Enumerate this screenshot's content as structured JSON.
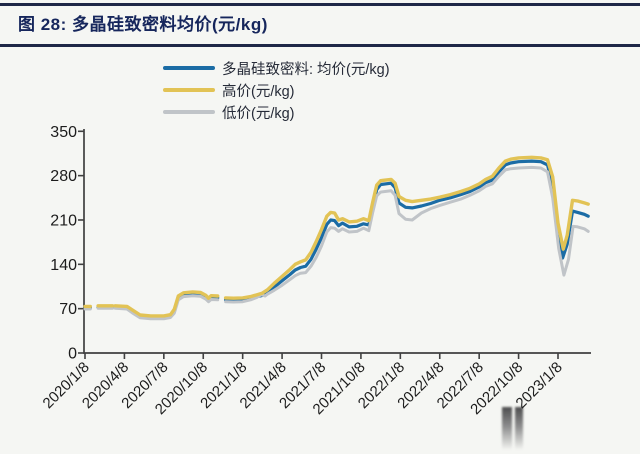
{
  "title": "图 28: 多晶硅致密料均价(元/kg)",
  "colors": {
    "accent_navy": "#16265c",
    "axis": "#404040",
    "tick_text": "#1c1c1c"
  },
  "chart_data": {
    "type": "line",
    "title": "图 28: 多晶硅致密料均价(元/kg)",
    "xlabel": "",
    "ylabel": "",
    "x_unit": "date (半月度), t = months since 2020/1/8",
    "grid": false,
    "legend_position": "top-center",
    "ylim": [
      0,
      350
    ],
    "yticks": [
      0,
      70,
      140,
      210,
      280,
      350
    ],
    "x_tick_months": [
      0,
      3,
      6,
      9,
      12,
      15,
      18,
      21,
      24,
      27,
      30,
      33,
      36
    ],
    "x_tick_labels": [
      "2020/1/8",
      "2020/4/8",
      "2020/7/8",
      "2020/10/8",
      "2021/1/8",
      "2021/4/8",
      "2021/7/8",
      "2021/10/8",
      "2022/1/8",
      "2022/4/8",
      "2022/7/8",
      "2022/10/8",
      "2023/1/8"
    ],
    "xlim_months": [
      0,
      38.6
    ],
    "series": [
      {
        "name": "多晶硅致密料: 均价(元/kg)",
        "key": "avg",
        "color": "#1b6ca5",
        "width": 3.2,
        "segments": [
          [
            [
              0,
              71.5
            ],
            [
              0.4,
              71.5
            ]
          ],
          [
            [
              1.0,
              72.5
            ],
            [
              2.1,
              72.5
            ]
          ],
          [
            [
              2.3,
              72.5
            ],
            [
              3.2,
              71.5
            ],
            [
              3.6,
              66
            ],
            [
              4.2,
              58
            ],
            [
              5.0,
              56.5
            ],
            [
              6.0,
              56.5
            ],
            [
              6.5,
              58.5
            ],
            [
              6.8,
              66
            ],
            [
              7.1,
              87
            ],
            [
              7.5,
              92
            ],
            [
              8.2,
              93.5
            ],
            [
              8.8,
              92.5
            ],
            [
              9.2,
              88
            ],
            [
              9.4,
              83.5
            ],
            [
              9.6,
              87.5
            ],
            [
              10.1,
              87
            ]
          ],
          [
            [
              10.7,
              84
            ],
            [
              11.3,
              83.5
            ],
            [
              12.0,
              84
            ],
            [
              12.6,
              86
            ],
            [
              13.1,
              89
            ],
            [
              13.5,
              91
            ],
            [
              13.9,
              96
            ],
            [
              14.4,
              104
            ],
            [
              15.0,
              114
            ],
            [
              15.6,
              124
            ],
            [
              16.0,
              131
            ],
            [
              16.4,
              135
            ],
            [
              16.8,
              137
            ],
            [
              17.2,
              148
            ],
            [
              17.6,
              164
            ],
            [
              18.0,
              182
            ],
            [
              18.4,
              203
            ],
            [
              18.7,
              210
            ],
            [
              19.0,
              209
            ],
            [
              19.3,
              201
            ],
            [
              19.6,
              205
            ],
            [
              20.1,
              199
            ],
            [
              20.7,
              200
            ],
            [
              21.2,
              204
            ],
            [
              21.6,
              202
            ],
            [
              21.9,
              230
            ],
            [
              22.2,
              258
            ],
            [
              22.5,
              266
            ],
            [
              23.3,
              268
            ],
            [
              23.6,
              261
            ],
            [
              23.9,
              237
            ],
            [
              24.4,
              230
            ],
            [
              24.9,
              229
            ],
            [
              25.6,
              232
            ],
            [
              26.3,
              236
            ],
            [
              27.0,
              241
            ],
            [
              27.8,
              245
            ],
            [
              28.6,
              250
            ],
            [
              29.3,
              255
            ],
            [
              30.0,
              262
            ],
            [
              30.5,
              269
            ],
            [
              31.0,
              273
            ],
            [
              31.5,
              286
            ],
            [
              32.0,
              297
            ],
            [
              32.4,
              300
            ],
            [
              33.0,
              302
            ],
            [
              34.0,
              303
            ],
            [
              34.7,
              302
            ],
            [
              35.2,
              297
            ],
            [
              35.6,
              265
            ],
            [
              36.0,
              192
            ],
            [
              36.35,
              150
            ],
            [
              36.7,
              172
            ],
            [
              37.1,
              224
            ],
            [
              37.5,
              222
            ],
            [
              38.0,
              219
            ],
            [
              38.3,
              216
            ]
          ]
        ]
      },
      {
        "name": "低价(元/kg)",
        "key": "low",
        "color": "#c0c4c8",
        "width": 3.0,
        "segments": [
          [
            [
              0,
              69.5
            ],
            [
              0.4,
              69.5
            ]
          ],
          [
            [
              1.0,
              70.5
            ],
            [
              2.1,
              70.5
            ]
          ],
          [
            [
              2.3,
              70.5
            ],
            [
              3.2,
              69.5
            ],
            [
              3.6,
              63.5
            ],
            [
              4.2,
              55.5
            ],
            [
              5.0,
              54
            ],
            [
              6.0,
              54
            ],
            [
              6.5,
              56
            ],
            [
              6.8,
              63
            ],
            [
              7.1,
              84
            ],
            [
              7.5,
              89
            ],
            [
              8.2,
              90.5
            ],
            [
              8.8,
              89.5
            ],
            [
              9.2,
              85
            ],
            [
              9.4,
              81
            ],
            [
              9.6,
              84.5
            ],
            [
              10.1,
              84
            ]
          ],
          [
            [
              10.7,
              81
            ],
            [
              11.3,
              80.5
            ],
            [
              12.0,
              81
            ],
            [
              12.6,
              84
            ],
            [
              13.1,
              88
            ],
            [
              13.4,
              92
            ],
            [
              13.7,
              90
            ],
            [
              13.9,
              93
            ],
            [
              14.4,
              99
            ],
            [
              15.0,
              107
            ],
            [
              15.6,
              116
            ],
            [
              16.0,
              122
            ],
            [
              16.4,
              126
            ],
            [
              16.8,
              127
            ],
            [
              17.2,
              137
            ],
            [
              17.6,
              151
            ],
            [
              18.0,
              169
            ],
            [
              18.4,
              191
            ],
            [
              18.7,
              198
            ],
            [
              19.0,
              197
            ],
            [
              19.3,
              192
            ],
            [
              19.6,
              196
            ],
            [
              20.1,
              191
            ],
            [
              20.7,
              192
            ],
            [
              21.2,
              197
            ],
            [
              21.6,
              193
            ],
            [
              21.9,
              222
            ],
            [
              22.2,
              248
            ],
            [
              22.5,
              254
            ],
            [
              23.3,
              256
            ],
            [
              23.6,
              249
            ],
            [
              23.9,
              220
            ],
            [
              24.4,
              211
            ],
            [
              24.9,
              210
            ],
            [
              25.6,
              221
            ],
            [
              26.3,
              228
            ],
            [
              27.0,
              233
            ],
            [
              27.8,
              238
            ],
            [
              28.6,
              243
            ],
            [
              29.3,
              249
            ],
            [
              30.0,
              256
            ],
            [
              30.5,
              263
            ],
            [
              31.0,
              267
            ],
            [
              31.5,
              279
            ],
            [
              32.0,
              289
            ],
            [
              32.4,
              291
            ],
            [
              33.0,
              292
            ],
            [
              34.0,
              293
            ],
            [
              34.7,
              292
            ],
            [
              35.2,
              286
            ],
            [
              35.6,
              245
            ],
            [
              36.05,
              165
            ],
            [
              36.45,
              123
            ],
            [
              36.8,
              148
            ],
            [
              37.15,
              200
            ],
            [
              37.5,
              199
            ],
            [
              38.0,
              196
            ],
            [
              38.3,
              192
            ]
          ]
        ]
      },
      {
        "name": "高价(元/kg)",
        "key": "high",
        "color": "#e2c355",
        "width": 3.4,
        "segments": [
          [
            [
              0,
              73.5
            ],
            [
              0.4,
              73.5
            ]
          ],
          [
            [
              1.0,
              74.5
            ],
            [
              2.1,
              74.5
            ]
          ],
          [
            [
              2.3,
              74.5
            ],
            [
              3.2,
              73.5
            ],
            [
              3.6,
              68
            ],
            [
              4.2,
              60
            ],
            [
              5.0,
              58.5
            ],
            [
              6.0,
              58.5
            ],
            [
              6.5,
              60.5
            ],
            [
              6.8,
              69
            ],
            [
              7.1,
              90
            ],
            [
              7.5,
              95
            ],
            [
              8.2,
              96.5
            ],
            [
              8.8,
              95.5
            ],
            [
              9.2,
              91
            ],
            [
              9.4,
              86.5
            ],
            [
              9.6,
              90.5
            ],
            [
              10.1,
              90
            ]
          ],
          [
            [
              10.7,
              87
            ],
            [
              11.3,
              86.5
            ],
            [
              12.0,
              87
            ],
            [
              12.6,
              89
            ],
            [
              13.1,
              92
            ],
            [
              13.5,
              94.5
            ],
            [
              13.9,
              100
            ],
            [
              14.4,
              110
            ],
            [
              15.0,
              121
            ],
            [
              15.6,
              132
            ],
            [
              16.0,
              140
            ],
            [
              16.4,
              144
            ],
            [
              16.8,
              147
            ],
            [
              17.2,
              159
            ],
            [
              17.6,
              176
            ],
            [
              18.0,
              195
            ],
            [
              18.4,
              216
            ],
            [
              18.7,
              222
            ],
            [
              19.0,
              221
            ],
            [
              19.3,
              210
            ],
            [
              19.6,
              212
            ],
            [
              20.1,
              207
            ],
            [
              20.7,
              208
            ],
            [
              21.2,
              212
            ],
            [
              21.6,
              209
            ],
            [
              21.9,
              238
            ],
            [
              22.2,
              265
            ],
            [
              22.5,
              272
            ],
            [
              23.3,
              274
            ],
            [
              23.6,
              268
            ],
            [
              23.9,
              247
            ],
            [
              24.4,
              241
            ],
            [
              24.9,
              239
            ],
            [
              25.6,
              241
            ],
            [
              26.3,
              243
            ],
            [
              27.0,
              246
            ],
            [
              27.8,
              250
            ],
            [
              28.6,
              255
            ],
            [
              29.3,
              260
            ],
            [
              30.0,
              267
            ],
            [
              30.5,
              274
            ],
            [
              31.0,
              279
            ],
            [
              31.5,
              292
            ],
            [
              32.0,
              303
            ],
            [
              32.4,
              306
            ],
            [
              33.0,
              308
            ],
            [
              34.0,
              309
            ],
            [
              34.7,
              308
            ],
            [
              35.2,
              305
            ],
            [
              35.6,
              278
            ],
            [
              36.0,
              205
            ],
            [
              36.4,
              164
            ],
            [
              36.7,
              186
            ],
            [
              37.1,
              241
            ],
            [
              37.5,
              240
            ],
            [
              38.0,
              237
            ],
            [
              38.3,
              235
            ]
          ]
        ]
      }
    ],
    "legend_order": [
      0,
      2,
      1
    ]
  }
}
